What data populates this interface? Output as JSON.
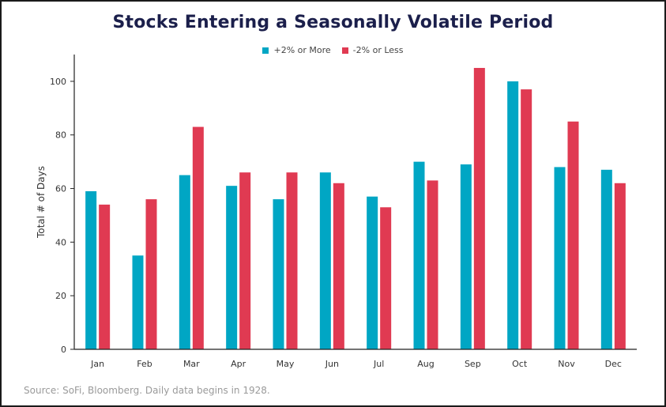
{
  "colors": {
    "series_up": "#00a6c4",
    "series_down": "#e03a52",
    "axis": "#222222"
  },
  "source_text": "Source: SoFi, Bloomberg. Daily data begins in 1928.",
  "chart_data": {
    "type": "bar",
    "title": "Stocks Entering a Seasonally Volatile Period",
    "xlabel": "",
    "ylabel": "Total # of Days",
    "categories": [
      "Jan",
      "Feb",
      "Mar",
      "Apr",
      "May",
      "Jun",
      "Jul",
      "Aug",
      "Sep",
      "Oct",
      "Nov",
      "Dec"
    ],
    "series": [
      {
        "name": "+2% or More",
        "values": [
          59,
          35,
          65,
          61,
          56,
          66,
          57,
          70,
          69,
          100,
          68,
          67
        ]
      },
      {
        "name": "-2% or Less",
        "values": [
          54,
          56,
          83,
          66,
          66,
          62,
          53,
          63,
          105,
          97,
          85,
          62
        ]
      }
    ],
    "ylim": [
      0,
      110
    ],
    "yticks": [
      0,
      20,
      40,
      60,
      80,
      100
    ],
    "grid": false,
    "legend_position": "top-center"
  }
}
